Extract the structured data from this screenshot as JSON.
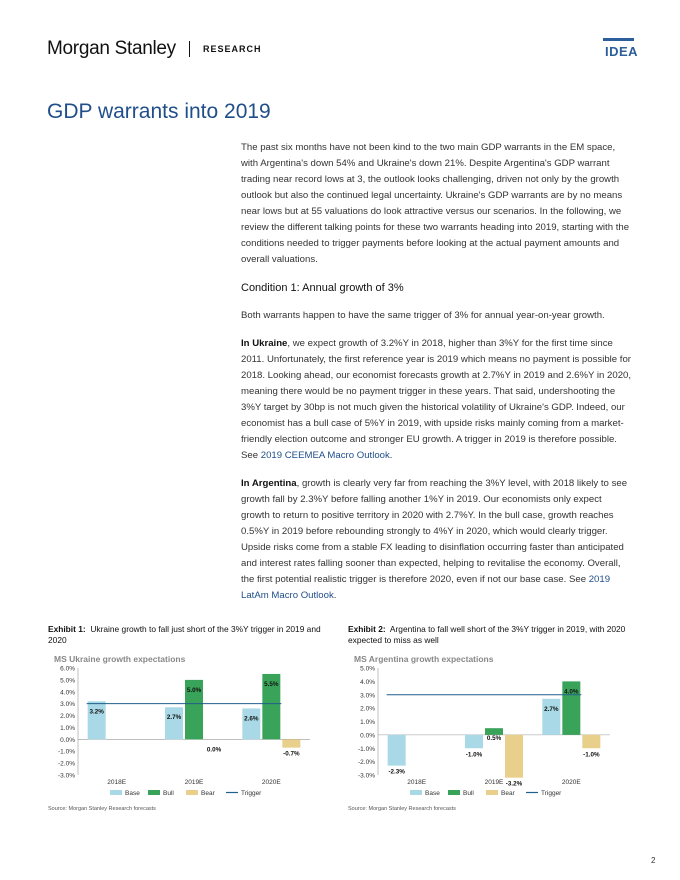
{
  "header": {
    "logo": "Morgan Stanley",
    "research": "RESEARCH",
    "idea": "IDEA"
  },
  "title": "GDP warrants into 2019",
  "paragraphs": {
    "intro": "The past six months have not been kind to the two main GDP warrants in the EM space, with Argentina's down 54% and Ukraine's down 21%. Despite Argentina's GDP warrant trading near record lows at 3, the outlook looks challenging, driven not only by the growth outlook but also the continued legal uncertainty. Ukraine's GDP warrants are by no means near lows but at 55 valuations do look attractive versus our scenarios. In the following, we review the different talking points for these two warrants heading into 2019, starting with the conditions needed to trigger payments before looking at the actual payment amounts and overall valuations.",
    "condition_heading": "Condition 1: Annual growth of 3%",
    "condition_text": "Both warrants happen to have the same trigger of 3% for annual year-on-year growth.",
    "ukraine_lead": "In Ukraine",
    "ukraine_text": ", we expect growth of 3.2%Y in 2018, higher than 3%Y for the first time since 2011. Unfortunately, the first reference year is 2019 which means no payment is possible for 2018. Looking ahead, our economist forecasts growth at 2.7%Y in 2019 and 2.6%Y in 2020, meaning there would be no payment trigger in these years. That said, undershooting the 3%Y target by 30bp is not much given the historical volatility of Ukraine's GDP. Indeed, our economist has a bull case of 5%Y in 2019, with upside risks mainly coming from a market-friendly election outcome and stronger EU growth. A trigger in 2019 is therefore possible. See ",
    "ukraine_link": "2019 CEEMEA Macro Outlook",
    "ukraine_end": ".",
    "argentina_lead": "In Argentina",
    "argentina_text": ", growth is clearly very far from reaching the 3%Y level, with 2018 likely to see growth fall by 2.3%Y before falling another 1%Y in 2019. Our economists only expect growth to return to positive territory in 2020 with 2.7%Y. In the bull case, growth reaches 0.5%Y in 2019 before rebounding strongly to 4%Y in 2020, which would clearly trigger. Upside risks come from a stable FX leading to disinflation occurring faster than anticipated and interest rates falling sooner than expected, helping to revitalise the economy. Overall, the first potential realistic trigger is therefore 2020, even if not our base case. See ",
    "argentina_link": "2019 LatAm Macro Outlook",
    "argentina_end": "."
  },
  "exhibits": [
    {
      "label": "Exhibit 1:",
      "caption": "Ukraine growth to fall just short of the 3%Y trigger in 2019 and 2020",
      "source": "Source: Morgan Stanley Research forecasts"
    },
    {
      "label": "Exhibit 2:",
      "caption": "Argentina to fall well short of the 3%Y trigger in 2019, with 2020 expected to miss as well",
      "source": "Source: Morgan Stanley Research forecasts"
    }
  ],
  "chart_data": [
    {
      "type": "bar",
      "title": "MS Ukraine growth expectations",
      "categories": [
        "2018E",
        "2019E",
        "2020E"
      ],
      "series": [
        {
          "name": "Base",
          "values": [
            3.2,
            2.7,
            2.6
          ],
          "color": "#a9d9e6"
        },
        {
          "name": "Bull",
          "values": [
            null,
            5.0,
            5.5
          ],
          "color": "#3aa35a"
        },
        {
          "name": "Bear",
          "values": [
            null,
            0.0,
            -0.7
          ],
          "color": "#e8cf8c"
        }
      ],
      "value_labels": [
        [
          "3.2%",
          "2.7%",
          "2.6%"
        ],
        [
          "",
          "5.0%",
          "5.5%"
        ],
        [
          "",
          "0.0%",
          "-0.7%"
        ]
      ],
      "trigger": {
        "name": "Trigger",
        "value": 3.0,
        "color": "#1f5f8b"
      },
      "ylim": [
        -3.0,
        6.0
      ],
      "yticks": [
        6.0,
        5.0,
        4.0,
        3.0,
        2.0,
        1.0,
        0.0,
        -1.0,
        -2.0,
        -3.0
      ],
      "ytick_labels": [
        "6.0%",
        "5.0%",
        "4.0%",
        "3.0%",
        "2.0%",
        "1.0%",
        "0.0%",
        "-1.0%",
        "-2.0%",
        "-3.0%"
      ],
      "legend": [
        "Base",
        "Bull",
        "Bear",
        "Trigger"
      ]
    },
    {
      "type": "bar",
      "title": "MS Argentina growth expectations",
      "categories": [
        "2018E",
        "2019E",
        "2020E"
      ],
      "series": [
        {
          "name": "Base",
          "values": [
            -2.3,
            -1.0,
            2.7
          ],
          "color": "#a9d9e6"
        },
        {
          "name": "Bull",
          "values": [
            null,
            0.5,
            4.0
          ],
          "color": "#3aa35a"
        },
        {
          "name": "Bear",
          "values": [
            null,
            -3.2,
            -1.0
          ],
          "color": "#e8cf8c"
        }
      ],
      "value_labels": [
        [
          "-2.3%",
          "-1.0%",
          "2.7%"
        ],
        [
          "",
          "0.5%",
          "4.0%"
        ],
        [
          "",
          "-3.2%",
          "-1.0%"
        ]
      ],
      "trigger": {
        "name": "Trigger",
        "value": 3.0,
        "color": "#1f5f8b"
      },
      "ylim": [
        -3.0,
        5.0
      ],
      "yticks": [
        5.0,
        4.0,
        3.0,
        2.0,
        1.0,
        0.0,
        -1.0,
        -2.0,
        -3.0
      ],
      "ytick_labels": [
        "5.0%",
        "4.0%",
        "3.0%",
        "2.0%",
        "1.0%",
        "0.0%",
        "-1.0%",
        "-2.0%",
        "-3.0%"
      ],
      "legend": [
        "Base",
        "Bull",
        "Bear",
        "Trigger"
      ]
    }
  ],
  "page_number": "2"
}
